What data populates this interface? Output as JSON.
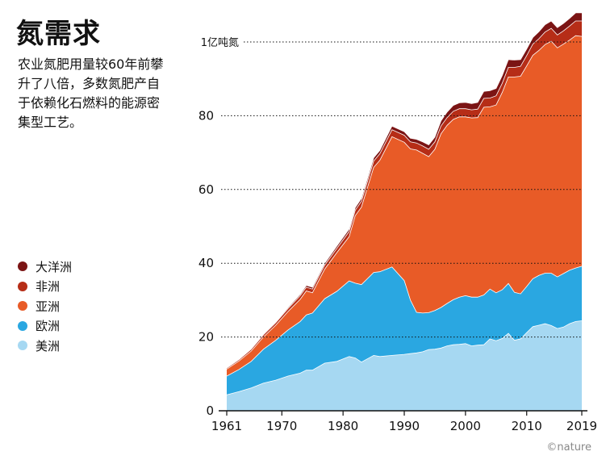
{
  "title": "氮需求",
  "subtitle": "农业氮肥用量较60年前攀升了八倍，多数氮肥产自于依赖化石燃料的能源密集型工艺。",
  "credit": "©nature",
  "colors": {
    "americas": "#a6d8f2",
    "europe": "#2aa7e1",
    "asia": "#e85b27",
    "africa": "#b62d17",
    "oceania": "#7b1414"
  },
  "legend": [
    {
      "key": "oceania",
      "label": "大洋洲"
    },
    {
      "key": "africa",
      "label": "非洲"
    },
    {
      "key": "asia",
      "label": "亚洲"
    },
    {
      "key": "europe",
      "label": "欧洲"
    },
    {
      "key": "americas",
      "label": "美洲"
    }
  ],
  "chart_data": {
    "type": "area",
    "stacked": true,
    "title": "氮需求",
    "ylabel_top": "1亿吨氮",
    "ylim": [
      0,
      110
    ],
    "xlim": [
      1961,
      2019
    ],
    "x_ticks": [
      "1961",
      "1970",
      "1980",
      "1990",
      "2000",
      "2010",
      "2019"
    ],
    "y_ticks": [
      "0",
      "20",
      "40",
      "60",
      "80"
    ],
    "x": [
      1961,
      1963,
      1965,
      1967,
      1969,
      1971,
      1973,
      1974,
      1975,
      1977,
      1979,
      1981,
      1982,
      1983,
      1985,
      1986,
      1988,
      1990,
      1991,
      1992,
      1993,
      1994,
      1995,
      1996,
      1997,
      1998,
      1999,
      2000,
      2001,
      2002,
      2003,
      2004,
      2005,
      2006,
      2007,
      2008,
      2009,
      2010,
      2011,
      2012,
      2013,
      2014,
      2015,
      2016,
      2017,
      2018,
      2019
    ],
    "series": [
      {
        "name": "美洲",
        "key": "americas",
        "values": [
          4.3,
          5.2,
          6.2,
          7.5,
          8.3,
          9.4,
          10.2,
          11.0,
          11.0,
          12.9,
          13.4,
          14.7,
          14.3,
          13.2,
          15.0,
          14.7,
          15.0,
          15.3,
          15.5,
          15.7,
          16.0,
          16.6,
          16.7,
          17.0,
          17.6,
          17.9,
          18.0,
          18.2,
          17.6,
          17.8,
          17.9,
          19.5,
          19.0,
          19.6,
          21.0,
          19.1,
          19.5,
          21.2,
          22.8,
          23.2,
          23.6,
          23.1,
          22.3,
          22.7,
          23.6,
          24.2,
          24.4
        ]
      },
      {
        "name": "欧洲",
        "key": "europe",
        "values": [
          5.1,
          6.0,
          7.2,
          9.2,
          10.8,
          12.5,
          14.0,
          15.0,
          15.5,
          17.5,
          19.0,
          20.5,
          20.3,
          21.0,
          22.5,
          23.0,
          24.0,
          20.0,
          14.5,
          11.0,
          10.5,
          10.0,
          10.5,
          11.0,
          11.5,
          12.2,
          12.8,
          13.0,
          13.2,
          13.0,
          13.5,
          13.5,
          13.0,
          13.2,
          13.5,
          13.0,
          12.2,
          12.5,
          13.0,
          13.5,
          13.7,
          14.2,
          14.0,
          14.5,
          14.5,
          14.5,
          14.8
        ]
      },
      {
        "name": "亚洲",
        "key": "asia",
        "values": [
          1.9,
          2.3,
          2.8,
          3.3,
          4.1,
          5.0,
          6.0,
          6.5,
          5.5,
          8.0,
          10.5,
          12.0,
          18.3,
          21.0,
          28.5,
          30.2,
          35.3,
          37.5,
          41.0,
          44.0,
          43.3,
          42.3,
          43.7,
          47.1,
          48.3,
          48.9,
          48.9,
          48.5,
          48.6,
          48.7,
          50.9,
          49.4,
          50.9,
          53.5,
          56.0,
          58.4,
          59.0,
          59.8,
          60.6,
          61.0,
          62.0,
          62.9,
          62.1,
          62.2,
          62.4,
          63.0,
          62.3
        ]
      },
      {
        "name": "非洲",
        "key": "africa",
        "values": [
          0.3,
          0.4,
          0.5,
          0.6,
          0.7,
          0.8,
          1.0,
          1.0,
          1.0,
          1.1,
          1.2,
          1.4,
          1.5,
          1.6,
          1.7,
          1.8,
          1.9,
          1.9,
          1.9,
          1.9,
          2.0,
          2.0,
          2.0,
          2.1,
          2.1,
          2.2,
          2.2,
          2.2,
          2.2,
          2.3,
          2.4,
          2.4,
          2.5,
          2.5,
          2.6,
          2.6,
          2.7,
          2.8,
          3.0,
          3.2,
          3.4,
          3.5,
          3.5,
          3.6,
          3.8,
          4.0,
          4.2
        ]
      },
      {
        "name": "大洋洲",
        "key": "oceania",
        "values": [
          0.1,
          0.1,
          0.1,
          0.2,
          0.2,
          0.3,
          0.4,
          0.5,
          0.5,
          0.5,
          0.6,
          0.7,
          0.7,
          0.8,
          0.9,
          0.9,
          1.0,
          1.0,
          1.0,
          1.0,
          1.1,
          1.2,
          1.3,
          1.4,
          1.5,
          1.6,
          1.6,
          1.7,
          1.7,
          1.8,
          1.9,
          2.0,
          2.0,
          2.1,
          2.1,
          2.0,
          1.8,
          1.8,
          1.8,
          1.9,
          2.0,
          2.0,
          2.0,
          2.0,
          2.1,
          2.2,
          2.2
        ]
      }
    ]
  }
}
